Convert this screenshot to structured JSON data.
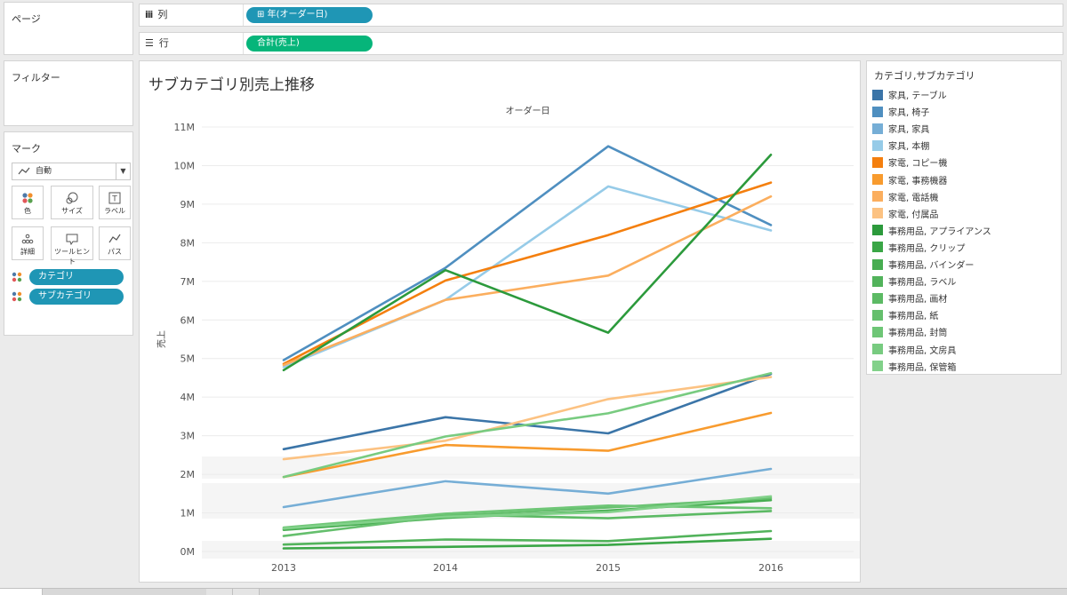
{
  "pages_panel": {
    "title": "ページ"
  },
  "filters_panel": {
    "title": "フィルター"
  },
  "marks_panel": {
    "title": "マーク",
    "mark_type": "自動",
    "buttons": [
      {
        "label": "色",
        "icon": "color-icon"
      },
      {
        "label": "サイズ",
        "icon": "size-icon"
      },
      {
        "label": "ラベル",
        "icon": "label-icon"
      },
      {
        "label": "詳細",
        "icon": "detail-icon"
      },
      {
        "label": "ツールヒント",
        "icon": "tooltip-icon"
      },
      {
        "label": "パス",
        "icon": "path-icon"
      }
    ],
    "fields": [
      {
        "label": "カテゴリ"
      },
      {
        "label": "サブカテゴリ"
      }
    ]
  },
  "columns_shelf": {
    "label": "列",
    "pill": "年(オーダー日)",
    "pill_prefix": "⊞"
  },
  "rows_shelf": {
    "label": "行",
    "pill": "合計(売上)"
  },
  "chart_title": "サブカテゴリ別売上推移",
  "legend": {
    "title": "カテゴリ,サブカテゴリ",
    "items": [
      {
        "label": "家具, テーブル",
        "color": "#3b75a8"
      },
      {
        "label": "家具, 椅子",
        "color": "#4f8fc0"
      },
      {
        "label": "家具, 家具",
        "color": "#76aed6"
      },
      {
        "label": "家具, 本棚",
        "color": "#96cbe8"
      },
      {
        "label": "家電, コピー機",
        "color": "#f47f0e"
      },
      {
        "label": "家電, 事務機器",
        "color": "#f89b2e"
      },
      {
        "label": "家電, 電話機",
        "color": "#fbae5e"
      },
      {
        "label": "家電, 付属品",
        "color": "#fcc282"
      },
      {
        "label": "事務用品, アプライアンス",
        "color": "#2c9a3c"
      },
      {
        "label": "事務用品, クリップ",
        "color": "#3aa646"
      },
      {
        "label": "事務用品, バインダー",
        "color": "#47ad51"
      },
      {
        "label": "事務用品, ラベル",
        "color": "#52b35b"
      },
      {
        "label": "事務用品, 画材",
        "color": "#5cba64"
      },
      {
        "label": "事務用品, 紙",
        "color": "#65bf6d"
      },
      {
        "label": "事務用品, 封筒",
        "color": "#6ec676"
      },
      {
        "label": "事務用品, 文房具",
        "color": "#78cb80"
      },
      {
        "label": "事務用品, 保管箱",
        "color": "#82d18a"
      }
    ]
  },
  "chart_data": {
    "type": "line",
    "title": "サブカテゴリ別売上推移",
    "x_header": "オーダー日",
    "ylabel": "売上",
    "x": [
      "2013",
      "2014",
      "2015",
      "2016"
    ],
    "y_ticks": [
      "0M",
      "1M",
      "2M",
      "3M",
      "4M",
      "5M",
      "6M",
      "7M",
      "8M",
      "9M",
      "10M",
      "11M"
    ],
    "ylim": [
      0,
      11000000
    ],
    "grid": true,
    "series": [
      {
        "name": "家具, テーブル",
        "color": "#3b75a8",
        "values": [
          2650000,
          3480000,
          3060000,
          4600000
        ]
      },
      {
        "name": "家具, 椅子",
        "color": "#4f8fc0",
        "values": [
          4960000,
          7350000,
          10500000,
          8460000
        ]
      },
      {
        "name": "家具, 家具",
        "color": "#76aed6",
        "values": [
          1150000,
          1820000,
          1500000,
          2140000
        ]
      },
      {
        "name": "家具, 本棚",
        "color": "#96cbe8",
        "values": [
          4780000,
          6520000,
          9460000,
          8320000
        ]
      },
      {
        "name": "家電, コピー機",
        "color": "#f47f0e",
        "values": [
          4860000,
          7020000,
          8200000,
          9560000
        ]
      },
      {
        "name": "家電, 事務機器",
        "color": "#f89b2e",
        "values": [
          1930000,
          2760000,
          2610000,
          3590000
        ]
      },
      {
        "name": "家電, 電話機",
        "color": "#fbae5e",
        "values": [
          4830000,
          6520000,
          7150000,
          9200000
        ]
      },
      {
        "name": "家電, 付属品",
        "color": "#fcc282",
        "values": [
          2390000,
          2870000,
          3950000,
          4520000
        ]
      },
      {
        "name": "事務用品, アプライアンス",
        "color": "#2c9a3c",
        "values": [
          4700000,
          7290000,
          5670000,
          10280000
        ]
      },
      {
        "name": "事務用品, クリップ",
        "color": "#3aa646",
        "values": [
          80000,
          120000,
          170000,
          330000
        ]
      },
      {
        "name": "事務用品, バインダー",
        "color": "#47ad51",
        "values": [
          560000,
          870000,
          1060000,
          1330000
        ]
      },
      {
        "name": "事務用品, ラベル",
        "color": "#52b35b",
        "values": [
          180000,
          310000,
          270000,
          530000
        ]
      },
      {
        "name": "事務用品, 画材",
        "color": "#5cba64",
        "values": [
          590000,
          960000,
          860000,
          1050000
        ]
      },
      {
        "name": "事務用品, 紙",
        "color": "#65bf6d",
        "values": [
          400000,
          920000,
          1140000,
          1380000
        ]
      },
      {
        "name": "事務用品, 封筒",
        "color": "#6ec676",
        "values": [
          620000,
          980000,
          1190000,
          1120000
        ]
      },
      {
        "name": "事務用品, 文房具",
        "color": "#78cb80",
        "values": [
          1930000,
          2980000,
          3580000,
          4620000
        ]
      },
      {
        "name": "事務用品, 保管箱",
        "color": "#82d18a",
        "values": [
          600000,
          900000,
          1020000,
          1430000
        ]
      }
    ]
  }
}
